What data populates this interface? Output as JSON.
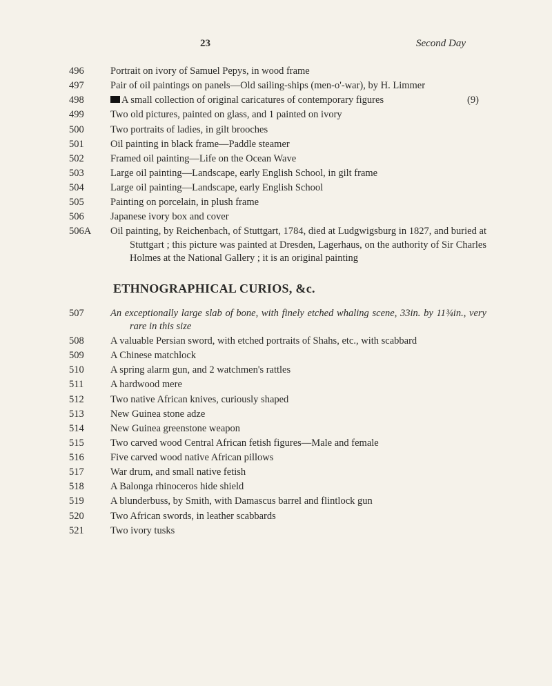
{
  "header": {
    "page_number": "23",
    "day_label": "Second Day"
  },
  "section1": [
    {
      "lot": "496",
      "text": "Portrait on ivory of Samuel Pepys, in wood frame"
    },
    {
      "lot": "497",
      "text": "Pair of oil paintings on panels—Old sailing-ships (men-o'-war), by H. Limmer"
    },
    {
      "lot": "498",
      "mark": true,
      "text": "A small collection of original caricatures of contemporary figures",
      "trail": "(9)"
    },
    {
      "lot": "499",
      "text": "Two old pictures, painted on glass, and 1 painted on ivory"
    },
    {
      "lot": "500",
      "text": "Two portraits of ladies, in gilt brooches"
    },
    {
      "lot": "501",
      "text": "Oil painting in black frame—Paddle steamer"
    },
    {
      "lot": "502",
      "text": "Framed oil painting—Life on the Ocean Wave"
    },
    {
      "lot": "503",
      "text": "Large oil painting—Landscape, early English School, in gilt frame"
    },
    {
      "lot": "504",
      "text": "Large oil painting—Landscape, early English School"
    },
    {
      "lot": "505",
      "text": "Painting on porcelain, in plush frame"
    },
    {
      "lot": "506",
      "text": "Japanese ivory box and cover"
    },
    {
      "lot": "506A",
      "text": "Oil painting, by Reichenbach, of Stuttgart, 1784, died at Ludgwigsburg in 1827, and buried at Stuttgart ; this picture was painted at Dresden, Lagerhaus, on the authority of Sir Charles Holmes at the National Gallery ; it is an original painting"
    }
  ],
  "section2_title": "ETHNOGRAPHICAL CURIOS, &c.",
  "section2": [
    {
      "lot": "507",
      "italic": true,
      "text": "An exceptionally large slab of bone, with finely etched whaling scene, 33in. by 11¾in., very rare in this size"
    },
    {
      "lot": "508",
      "text": "A valuable Persian sword, with etched portraits of Shahs, etc., with scabbard"
    },
    {
      "lot": "509",
      "text": "A Chinese matchlock"
    },
    {
      "lot": "510",
      "text": "A spring alarm gun, and 2 watchmen's rattles"
    },
    {
      "lot": "511",
      "text": "A hardwood mere"
    },
    {
      "lot": "512",
      "text": "Two native African knives, curiously shaped"
    },
    {
      "lot": "513",
      "text": "New Guinea stone adze"
    },
    {
      "lot": "514",
      "text": "New Guinea greenstone weapon"
    },
    {
      "lot": "515",
      "text": "Two carved wood Central African fetish figures—Male and female"
    },
    {
      "lot": "516",
      "text": "Five carved wood native African pillows"
    },
    {
      "lot": "517",
      "text": "War drum, and small native fetish"
    },
    {
      "lot": "518",
      "text": "A Balonga rhinoceros hide shield"
    },
    {
      "lot": "519",
      "text": "A blunderbuss, by Smith, with Damascus barrel and flintlock gun"
    },
    {
      "lot": "520",
      "text": "Two African swords, in leather scabbards"
    },
    {
      "lot": "521",
      "text": "Two ivory tusks"
    }
  ]
}
